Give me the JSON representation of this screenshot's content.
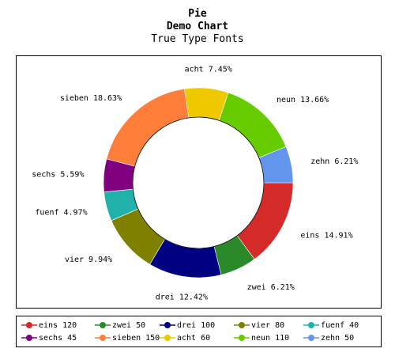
{
  "titles": {
    "line1": "Pie",
    "line2": "Demo Chart",
    "line3": "True Type Fonts"
  },
  "chart_data": {
    "type": "pie",
    "title": "Pie",
    "subtitle": "Demo Chart",
    "subtitle2": "True Type Fonts",
    "donut": true,
    "legend_position": "bottom",
    "slices": [
      {
        "name": "eins",
        "value": 120,
        "label": "eins 14.91%",
        "legend": "eins 120",
        "color": "#d42a2a"
      },
      {
        "name": "zwei",
        "value": 50,
        "label": "zwei 6.21%",
        "legend": "zwei 50",
        "color": "#2a8a2a"
      },
      {
        "name": "drei",
        "value": 100,
        "label": "drei 12.42%",
        "legend": "drei 100",
        "color": "#000080"
      },
      {
        "name": "vier",
        "value": 80,
        "label": "vier 9.94%",
        "legend": "vier 80",
        "color": "#808000"
      },
      {
        "name": "fuenf",
        "value": 40,
        "label": "fuenf 4.97%",
        "legend": "fuenf 40",
        "color": "#20b2aa"
      },
      {
        "name": "sechs",
        "value": 45,
        "label": "sechs 5.59%",
        "legend": "sechs 45",
        "color": "#800080"
      },
      {
        "name": "sieben",
        "value": 150,
        "label": "sieben 18.63%",
        "legend": "sieben 150",
        "color": "#ff7f3a"
      },
      {
        "name": "acht",
        "value": 60,
        "label": "acht 7.45%",
        "legend": "acht 60",
        "color": "#f0c800"
      },
      {
        "name": "neun",
        "value": 110,
        "label": "neun 13.66%",
        "legend": "neun 110",
        "color": "#66cc00"
      },
      {
        "name": "zehn",
        "value": 50,
        "label": "zehn 6.21%",
        "legend": "zehn 50",
        "color": "#6495ed"
      }
    ]
  }
}
